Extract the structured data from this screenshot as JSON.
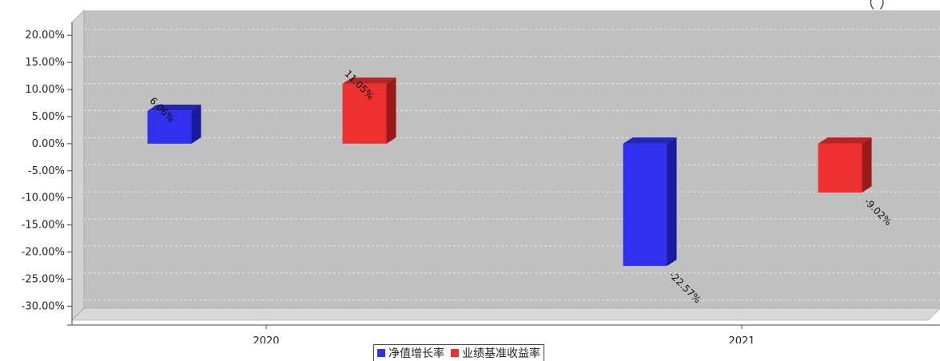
{
  "chart_data": {
    "type": "bar",
    "categories": [
      "2020",
      "2021"
    ],
    "series": [
      {
        "name": "净值增长率",
        "values": [
          6.06,
          -22.57
        ],
        "labels": [
          "6.06%",
          "-22.57%"
        ],
        "color": "#3030ee"
      },
      {
        "name": "业绩基准收益率",
        "values": [
          11.05,
          -9.02
        ],
        "labels": [
          "11.05%",
          "-9.02%"
        ],
        "color": "#ee3030"
      }
    ],
    "y_ticks": [
      "20.00%",
      "15.00%",
      "10.00%",
      "5.00%",
      "0.00%",
      "-5.00%",
      "-10.00%",
      "-15.00%",
      "-20.00%",
      "-25.00%",
      "-30.00%"
    ],
    "ylim": [
      -31.5,
      23.5
    ],
    "grid": true,
    "legend": "bottom",
    "title_fragment": "（                    ）"
  }
}
